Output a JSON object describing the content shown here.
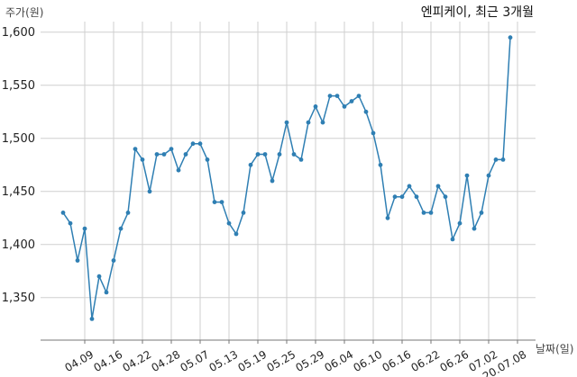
{
  "chart_data": {
    "type": "line",
    "title": "엔피케이, 최근 3개월",
    "ylabel": "주가(원)",
    "xlabel": "날짜(일)",
    "ylim": [
      1310,
      1610
    ],
    "yticks": [
      1350,
      1400,
      1450,
      1500,
      1550,
      1600
    ],
    "ytick_labels": [
      "1,350",
      "1,400",
      "1,450",
      "1,500",
      "1,550",
      "1,600"
    ],
    "grid": true,
    "xtick_labels": [
      "04.09",
      "04.16",
      "04.22",
      "04.28",
      "05.07",
      "05.13",
      "05.19",
      "05.25",
      "05.29",
      "06.04",
      "06.10",
      "06.16",
      "06.22",
      "06.26",
      "07.02",
      "20.07.08"
    ],
    "xtick_index": [
      3,
      7,
      11,
      15,
      19,
      23,
      27,
      31,
      35,
      39,
      43,
      47,
      51,
      55,
      59,
      63
    ],
    "series": [
      {
        "values": [
          1430,
          1420,
          1385,
          1415,
          1330,
          1370,
          1355,
          1385,
          1415,
          1430,
          1490,
          1480,
          1450,
          1485,
          1485,
          1490,
          1470,
          1485,
          1495,
          1495,
          1480,
          1440,
          1440,
          1420,
          1410,
          1430,
          1475,
          1485,
          1485,
          1460,
          1485,
          1515,
          1485,
          1480,
          1515,
          1530,
          1515,
          1540,
          1540,
          1530,
          1535,
          1540,
          1525,
          1505,
          1475,
          1425,
          1445,
          1445,
          1455,
          1445,
          1430,
          1430,
          1455,
          1445,
          1405,
          1420,
          1465,
          1415,
          1430,
          1465,
          1480,
          1480,
          1595
        ]
      }
    ]
  }
}
